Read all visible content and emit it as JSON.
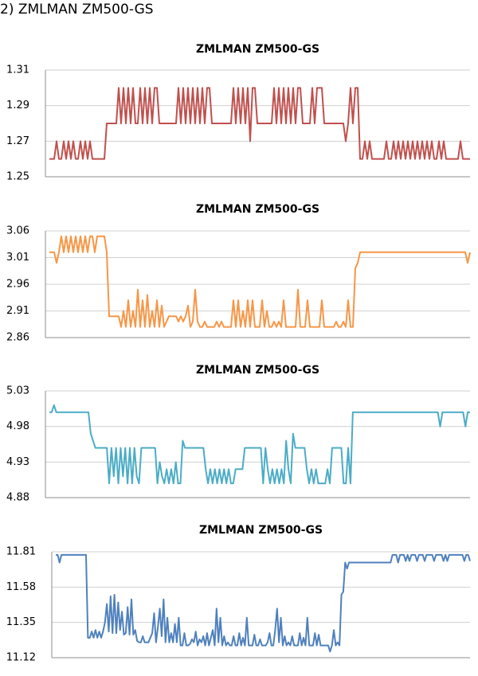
{
  "page_heading": "2) ZMLMAN ZM500-GS",
  "chart_data": [
    {
      "type": "line",
      "title": "ZMLMAN ZM500-GS",
      "yticks": [
        "1.31",
        "1.29",
        "1.27",
        "1.25"
      ],
      "ylim": [
        1.25,
        1.31
      ],
      "grid": true,
      "color": "#c0504d",
      "series": [
        {
          "values": [
            1.26,
            1.26,
            1.26,
            1.27,
            1.26,
            1.26,
            1.27,
            1.26,
            1.27,
            1.26,
            1.27,
            1.26,
            1.26,
            1.27,
            1.26,
            1.27,
            1.26,
            1.27,
            1.26,
            1.26,
            1.26,
            1.26,
            1.26,
            1.26,
            1.28,
            1.28,
            1.28,
            1.28,
            1.28,
            1.3,
            1.28,
            1.3,
            1.28,
            1.3,
            1.28,
            1.3,
            1.28,
            1.28,
            1.3,
            1.28,
            1.3,
            1.28,
            1.3,
            1.28,
            1.3,
            1.3,
            1.28,
            1.28,
            1.28,
            1.28,
            1.28,
            1.28,
            1.28,
            1.28,
            1.3,
            1.28,
            1.3,
            1.28,
            1.3,
            1.28,
            1.3,
            1.28,
            1.3,
            1.28,
            1.3,
            1.28,
            1.3,
            1.3,
            1.28,
            1.28,
            1.28,
            1.28,
            1.28,
            1.28,
            1.28,
            1.28,
            1.28,
            1.3,
            1.28,
            1.3,
            1.28,
            1.3,
            1.28,
            1.3,
            1.27,
            1.3,
            1.3,
            1.28,
            1.28,
            1.28,
            1.28,
            1.28,
            1.28,
            1.28,
            1.3,
            1.28,
            1.3,
            1.28,
            1.3,
            1.28,
            1.3,
            1.28,
            1.3,
            1.28,
            1.3,
            1.3,
            1.28,
            1.28,
            1.28,
            1.28,
            1.3,
            1.28,
            1.3,
            1.3,
            1.3,
            1.28,
            1.28,
            1.28,
            1.28,
            1.28,
            1.28,
            1.28,
            1.28,
            1.28,
            1.27,
            1.28,
            1.3,
            1.28,
            1.3,
            1.3,
            1.26,
            1.26,
            1.27,
            1.26,
            1.27,
            1.26,
            1.26,
            1.26,
            1.26,
            1.26,
            1.26,
            1.27,
            1.26,
            1.26,
            1.27,
            1.26,
            1.27,
            1.26,
            1.27,
            1.26,
            1.27,
            1.26,
            1.27,
            1.26,
            1.27,
            1.26,
            1.27,
            1.26,
            1.27,
            1.26,
            1.27,
            1.26,
            1.26,
            1.27,
            1.26,
            1.27,
            1.26,
            1.26,
            1.26,
            1.26,
            1.26,
            1.26,
            1.27,
            1.26,
            1.26,
            1.26,
            1.26
          ]
        }
      ]
    },
    {
      "type": "line",
      "title": "ZMLMAN ZM500-GS",
      "yticks": [
        "3.06",
        "3.01",
        "2.96",
        "2.91",
        "2.86"
      ],
      "ylim": [
        2.86,
        3.06
      ],
      "grid": true,
      "color": "#f79646",
      "series": [
        {
          "values": [
            3.02,
            3.02,
            3.02,
            3.0,
            3.02,
            3.05,
            3.02,
            3.05,
            3.02,
            3.05,
            3.02,
            3.05,
            3.02,
            3.05,
            3.02,
            3.05,
            3.02,
            3.05,
            3.05,
            3.02,
            3.05,
            3.05,
            3.05,
            3.05,
            3.02,
            2.9,
            2.9,
            2.9,
            2.9,
            2.9,
            2.88,
            2.91,
            2.88,
            2.93,
            2.88,
            2.91,
            2.88,
            2.95,
            2.88,
            2.93,
            2.88,
            2.94,
            2.88,
            2.91,
            2.88,
            2.93,
            2.88,
            2.92,
            2.88,
            2.89,
            2.9,
            2.9,
            2.9,
            2.9,
            2.89,
            2.9,
            2.89,
            2.9,
            2.92,
            2.88,
            2.89,
            2.95,
            2.89,
            2.88,
            2.88,
            2.89,
            2.88,
            2.88,
            2.88,
            2.88,
            2.89,
            2.88,
            2.89,
            2.88,
            2.88,
            2.88,
            2.88,
            2.93,
            2.88,
            2.93,
            2.88,
            2.91,
            2.88,
            2.93,
            2.88,
            2.93,
            2.88,
            2.88,
            2.88,
            2.93,
            2.88,
            2.91,
            2.88,
            2.88,
            2.89,
            2.88,
            2.89,
            2.88,
            2.93,
            2.88,
            2.88,
            2.88,
            2.88,
            2.88,
            2.95,
            2.88,
            2.88,
            2.88,
            2.93,
            2.88,
            2.88,
            2.88,
            2.88,
            2.88,
            2.93,
            2.88,
            2.88,
            2.88,
            2.88,
            2.88,
            2.89,
            2.88,
            2.88,
            2.89,
            2.88,
            2.93,
            2.88,
            2.88,
            2.99,
            3.0,
            3.02,
            3.02,
            3.02,
            3.02,
            3.02,
            3.02,
            3.02,
            3.02,
            3.02,
            3.02,
            3.02,
            3.02,
            3.02,
            3.02,
            3.02,
            3.02,
            3.02,
            3.02,
            3.02,
            3.02,
            3.02,
            3.02,
            3.02,
            3.02,
            3.02,
            3.02,
            3.02,
            3.02,
            3.02,
            3.02,
            3.02,
            3.02,
            3.02,
            3.02,
            3.02,
            3.02,
            3.02,
            3.02,
            3.02,
            3.02,
            3.02,
            3.02,
            3.02,
            3.02,
            3.02,
            3.0,
            3.02
          ]
        }
      ]
    },
    {
      "type": "line",
      "title": "ZMLMAN ZM500-GS",
      "yticks": [
        "5.03",
        "4.98",
        "4.93",
        "4.88"
      ],
      "ylim": [
        4.88,
        5.03
      ],
      "grid": true,
      "color": "#4bacc6",
      "series": [
        {
          "values": [
            5.0,
            5.0,
            5.01,
            5.0,
            5.0,
            5.0,
            5.0,
            5.0,
            5.0,
            5.0,
            5.0,
            5.0,
            5.0,
            5.0,
            5.0,
            5.0,
            5.0,
            5.0,
            4.97,
            4.96,
            4.95,
            4.95,
            4.95,
            4.95,
            4.95,
            4.95,
            4.9,
            4.95,
            4.91,
            4.95,
            4.9,
            4.95,
            4.91,
            4.95,
            4.9,
            4.95,
            4.9,
            4.95,
            4.91,
            4.9,
            4.95,
            4.95,
            4.95,
            4.95,
            4.95,
            4.95,
            4.95,
            4.9,
            4.93,
            4.91,
            4.9,
            4.92,
            4.9,
            4.92,
            4.9,
            4.93,
            4.9,
            4.9,
            4.96,
            4.95,
            4.95,
            4.95,
            4.95,
            4.95,
            4.95,
            4.95,
            4.95,
            4.95,
            4.92,
            4.9,
            4.92,
            4.9,
            4.92,
            4.9,
            4.92,
            4.9,
            4.92,
            4.9,
            4.92,
            4.9,
            4.9,
            4.92,
            4.92,
            4.92,
            4.92,
            4.95,
            4.95,
            4.95,
            4.95,
            4.95,
            4.95,
            4.95,
            4.95,
            4.9,
            4.95,
            4.92,
            4.9,
            4.92,
            4.9,
            4.92,
            4.9,
            4.92,
            4.9,
            4.96,
            4.92,
            4.9,
            4.97,
            4.95,
            4.95,
            4.95,
            4.95,
            4.95,
            4.92,
            4.9,
            4.92,
            4.9,
            4.92,
            4.9,
            4.9,
            4.9,
            4.9,
            4.92,
            4.9,
            4.95,
            4.95,
            4.95,
            4.95,
            4.95,
            4.9,
            4.9,
            4.95,
            4.9,
            5.0,
            5.0,
            5.0,
            5.0,
            5.0,
            5.0,
            5.0,
            5.0,
            5.0,
            5.0,
            5.0,
            5.0,
            5.0,
            5.0,
            5.0,
            5.0,
            5.0,
            5.0,
            5.0,
            5.0,
            5.0,
            5.0,
            5.0,
            5.0,
            5.0,
            5.0,
            5.0,
            5.0,
            5.0,
            5.0,
            5.0,
            5.0,
            5.0,
            5.0,
            5.0,
            5.0,
            5.0,
            5.0,
            4.98,
            5.0,
            5.0,
            5.0,
            5.0,
            5.0,
            5.0,
            5.0,
            5.0,
            5.0,
            5.0,
            4.98,
            5.0,
            5.0
          ]
        }
      ]
    },
    {
      "type": "line",
      "title": "ZMLMAN ZM500-GS",
      "yticks": [
        "11.81",
        "11.58",
        "11.35",
        "11.12"
      ],
      "ylim": [
        11.12,
        11.81
      ],
      "grid": true,
      "color": "#4f81bd",
      "series": [
        {
          "values": [
            11.79,
            11.79,
            11.74,
            11.79,
            11.79,
            11.79,
            11.79,
            11.79,
            11.79,
            11.79,
            11.79,
            11.79,
            11.79,
            11.79,
            11.79,
            11.79,
            11.79,
            11.25,
            11.25,
            11.29,
            11.25,
            11.3,
            11.25,
            11.29,
            11.25,
            11.29,
            11.35,
            11.47,
            11.29,
            11.52,
            11.28,
            11.53,
            11.28,
            11.48,
            11.3,
            11.42,
            11.27,
            11.28,
            11.45,
            11.27,
            11.5,
            11.27,
            11.3,
            11.23,
            11.22,
            11.22,
            11.26,
            11.22,
            11.22,
            11.22,
            11.25,
            11.28,
            11.41,
            11.22,
            11.32,
            11.44,
            11.26,
            11.5,
            11.22,
            11.38,
            11.22,
            11.28,
            11.22,
            11.34,
            11.22,
            11.38,
            11.2,
            11.2,
            11.28,
            11.2,
            11.2,
            11.21,
            11.24,
            11.22,
            11.29,
            11.2,
            11.24,
            11.22,
            11.26,
            11.2,
            11.28,
            11.2,
            11.25,
            11.3,
            11.2,
            11.44,
            11.22,
            11.38,
            11.2,
            11.26,
            11.2,
            11.22,
            11.2,
            11.2,
            11.26,
            11.2,
            11.2,
            11.28,
            11.2,
            11.25,
            11.2,
            11.38,
            11.2,
            11.2,
            11.2,
            11.27,
            11.2,
            11.2,
            11.24,
            11.2,
            11.2,
            11.2,
            11.22,
            11.28,
            11.2,
            11.2,
            11.3,
            11.44,
            11.22,
            11.38,
            11.2,
            11.26,
            11.2,
            11.22,
            11.2,
            11.26,
            11.2,
            11.2,
            11.2,
            11.28,
            11.2,
            11.25,
            11.2,
            11.38,
            11.2,
            11.2,
            11.2,
            11.28,
            11.2,
            11.27,
            11.2,
            11.2,
            11.2,
            11.2,
            11.2,
            11.16,
            11.2,
            11.3,
            11.2,
            11.22,
            11.2,
            11.53,
            11.55,
            11.74,
            11.7,
            11.74,
            11.74,
            11.74,
            11.74,
            11.74,
            11.74,
            11.74,
            11.74,
            11.74,
            11.74,
            11.74,
            11.74,
            11.74,
            11.74,
            11.74,
            11.74,
            11.74,
            11.74,
            11.74,
            11.74,
            11.74,
            11.74,
            11.74,
            11.79,
            11.79,
            11.79,
            11.74,
            11.79,
            11.79,
            11.79,
            11.75,
            11.79,
            11.75,
            11.79,
            11.79,
            11.79,
            11.75,
            11.79,
            11.79,
            11.79,
            11.75,
            11.79,
            11.79,
            11.79,
            11.79,
            11.75,
            11.79,
            11.79,
            11.79,
            11.79,
            11.75,
            11.79,
            11.75,
            11.79,
            11.79,
            11.79,
            11.79,
            11.79,
            11.79,
            11.79,
            11.79,
            11.75,
            11.79,
            11.79,
            11.75
          ]
        }
      ]
    }
  ]
}
